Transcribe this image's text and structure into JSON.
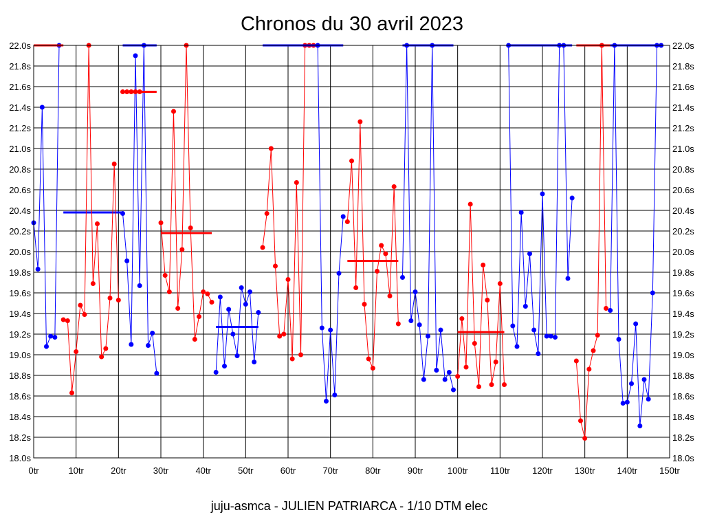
{
  "chart_data": {
    "type": "line",
    "title": "Chronos du 30 avril 2023",
    "footer": "juju-asmca - JULIEN PATRIARCA - 1/10 DTM elec",
    "xlim": [
      0,
      150
    ],
    "ylim": [
      18.0,
      22.0
    ],
    "x_ticks": [
      0,
      10,
      20,
      30,
      40,
      50,
      60,
      70,
      80,
      90,
      100,
      110,
      120,
      130,
      140,
      150
    ],
    "x_tick_labels": [
      "0tr",
      "10tr",
      "20tr",
      "30tr",
      "40tr",
      "50tr",
      "60tr",
      "70tr",
      "80tr",
      "90tr",
      "100tr",
      "110tr",
      "120tr",
      "130tr",
      "140tr",
      "150tr"
    ],
    "y_ticks": [
      18.0,
      18.2,
      18.4,
      18.6,
      18.8,
      19.0,
      19.2,
      19.4,
      19.6,
      19.8,
      20.0,
      20.2,
      20.4,
      20.6,
      20.8,
      21.0,
      21.2,
      21.4,
      21.6,
      21.8,
      22.0
    ],
    "y_tick_labels": [
      "18.0s",
      "18.2s",
      "18.4s",
      "18.6s",
      "18.8s",
      "19.0s",
      "19.2s",
      "19.4s",
      "19.6s",
      "19.8s",
      "20.0s",
      "20.2s",
      "20.4s",
      "20.6s",
      "20.8s",
      "21.0s",
      "21.2s",
      "21.4s",
      "21.6s",
      "21.8s",
      "22.0s"
    ],
    "grid": true,
    "colors": {
      "blue": "#0000ff",
      "red": "#ff0000",
      "grid": "#000000",
      "frame": "#000000"
    },
    "series": [
      {
        "color": "#0000ff",
        "laps": [
          0,
          1,
          2,
          3,
          4,
          5,
          6
        ],
        "values": [
          20.28,
          19.83,
          21.4,
          19.08,
          19.18,
          19.17,
          22.0
        ],
        "average": 20.38,
        "avg_range": [
          7,
          21
        ]
      },
      {
        "color": "#ff0000",
        "laps": [
          7,
          8,
          9,
          10,
          11,
          12,
          13,
          14,
          15,
          16,
          17,
          18,
          19,
          20
        ],
        "values": [
          19.34,
          19.33,
          18.63,
          19.03,
          19.48,
          19.39,
          22.0,
          19.69,
          20.27,
          18.98,
          19.06,
          19.55,
          20.85,
          19.53
        ],
        "average": 22.0,
        "avg_range": [
          0,
          7
        ]
      },
      {
        "color": "#0000ff",
        "laps": [
          21,
          22,
          23,
          24,
          25,
          26,
          27,
          28,
          29
        ],
        "values": [
          20.37,
          19.91,
          19.1,
          21.9,
          19.67,
          22.0,
          19.09,
          19.21,
          18.82
        ],
        "average": 22.0,
        "avg_range": [
          21,
          29
        ]
      },
      {
        "color": "#ff0000",
        "laps": [
          21,
          22,
          23,
          24,
          25
        ],
        "values": [
          21.55,
          21.55,
          21.55,
          21.55,
          21.55
        ],
        "average": 21.55,
        "avg_range": [
          21,
          29
        ]
      },
      {
        "color": "#ff0000",
        "laps": [
          30,
          31,
          32,
          33,
          34,
          35,
          36,
          37,
          38,
          39,
          40,
          41,
          42
        ],
        "values": [
          20.28,
          19.77,
          19.61,
          21.36,
          19.45,
          20.02,
          22.0,
          20.23,
          19.15,
          19.37,
          19.61,
          19.59,
          19.51
        ],
        "average": 20.18,
        "avg_range": [
          30,
          42
        ]
      },
      {
        "color": "#0000ff",
        "laps": [
          43,
          44,
          45,
          46,
          47,
          48,
          49,
          50,
          51,
          52,
          53
        ],
        "values": [
          18.83,
          19.56,
          18.89,
          19.44,
          19.2,
          18.99,
          19.65,
          19.49,
          19.61,
          18.93,
          19.41
        ],
        "average": 19.27,
        "avg_range": [
          43,
          53
        ]
      },
      {
        "color": "#ff0000",
        "laps": [
          54,
          55,
          56,
          57,
          58,
          59,
          60,
          61,
          62,
          63,
          64,
          65,
          66
        ],
        "values": [
          20.04,
          20.37,
          21.0,
          19.86,
          19.18,
          19.2,
          19.73,
          18.96,
          20.67,
          19.0,
          22.0,
          22.0,
          22.0
        ],
        "average": 22.0,
        "avg_range": [
          54,
          73
        ]
      },
      {
        "color": "#0000ff",
        "laps": [
          67,
          68,
          69,
          70,
          71,
          72,
          73
        ],
        "values": [
          22.0,
          19.26,
          18.55,
          19.24,
          18.61,
          19.79,
          20.34
        ],
        "average": 22.0,
        "avg_range": [
          54,
          73
        ]
      },
      {
        "color": "#ff0000",
        "laps": [
          74,
          75,
          76,
          77,
          78,
          79,
          80,
          81,
          82,
          83,
          84,
          85,
          86
        ],
        "values": [
          20.29,
          20.88,
          19.65,
          21.26,
          19.49,
          18.96,
          18.87,
          19.81,
          20.06,
          19.98,
          19.57,
          20.63,
          19.3
        ],
        "average": 19.91,
        "avg_range": [
          74,
          86
        ]
      },
      {
        "color": "#0000ff",
        "laps": [
          87,
          88,
          89,
          90,
          91,
          92,
          93,
          94,
          95,
          96,
          97,
          98,
          99
        ],
        "values": [
          19.75,
          22.0,
          19.33,
          19.61,
          19.29,
          18.76,
          19.18,
          22.0,
          18.85,
          19.24,
          18.76,
          18.83,
          18.66
        ],
        "average": 22.0,
        "avg_range": [
          87,
          99
        ]
      },
      {
        "color": "#ff0000",
        "laps": [
          100,
          101,
          102,
          103,
          104,
          105,
          106,
          107,
          108,
          109,
          110,
          111
        ],
        "values": [
          18.79,
          19.35,
          18.88,
          20.46,
          19.11,
          18.69,
          19.87,
          19.53,
          18.71,
          18.93,
          19.69,
          18.71
        ],
        "average": 19.22,
        "avg_range": [
          100,
          111
        ]
      },
      {
        "color": "#0000ff",
        "laps": [
          112,
          113,
          114,
          115,
          116,
          117,
          118,
          119,
          120,
          121,
          122,
          123,
          124,
          125,
          126,
          127
        ],
        "values": [
          22.0,
          19.28,
          19.08,
          20.38,
          19.47,
          19.98,
          19.24,
          19.01,
          20.56,
          19.18,
          19.18,
          19.17,
          22.0,
          22.0,
          19.74,
          20.52
        ],
        "average": 22.0,
        "avg_range": [
          112,
          127
        ]
      },
      {
        "color": "#ff0000",
        "laps": [
          128,
          129,
          130,
          131,
          132,
          133,
          134,
          135
        ],
        "values": [
          18.94,
          18.36,
          18.19,
          18.86,
          19.04,
          19.19,
          22.0,
          19.45
        ],
        "average": 22.0,
        "avg_range": [
          128,
          136
        ]
      },
      {
        "color": "#0000ff",
        "laps": [
          136,
          137,
          138,
          139,
          140,
          141,
          142,
          143,
          144,
          145,
          146,
          147,
          148
        ],
        "values": [
          19.43,
          22.0,
          19.15,
          18.53,
          18.54,
          18.72,
          19.3,
          18.31,
          18.76,
          18.57,
          19.6,
          22.0,
          22.0
        ],
        "average": 22.0,
        "avg_range": [
          136,
          148
        ]
      }
    ]
  }
}
